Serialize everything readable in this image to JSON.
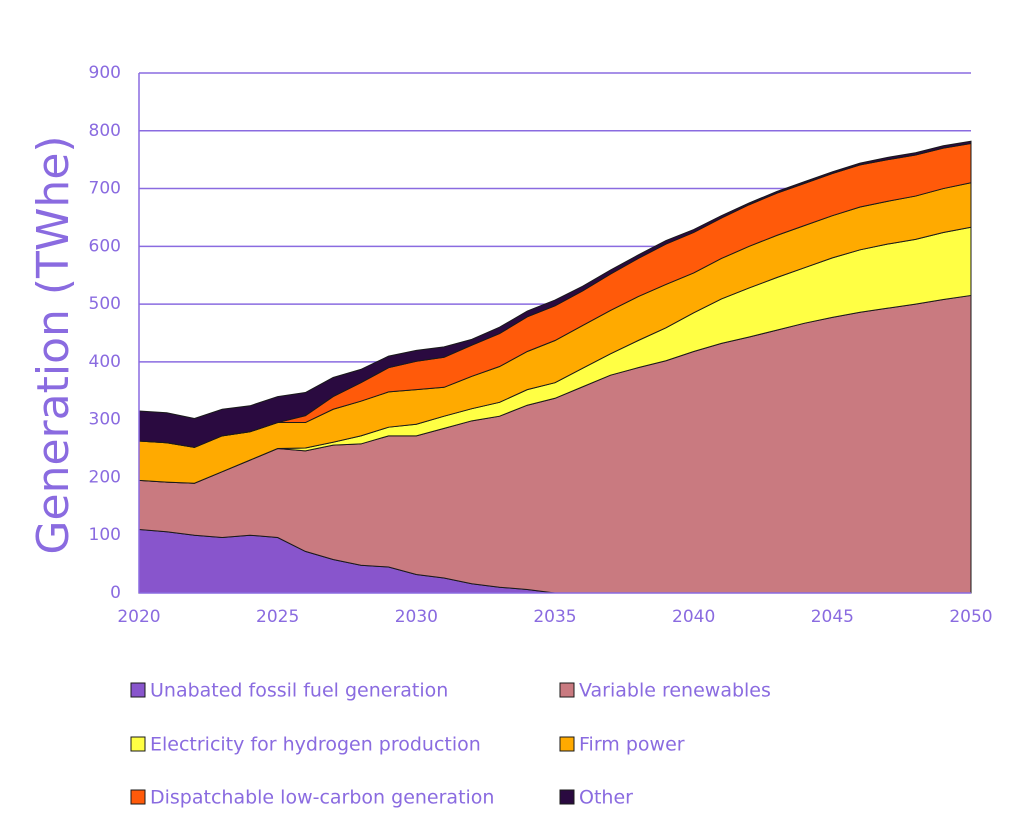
{
  "chart_data": {
    "type": "area",
    "stacked": true,
    "title": "",
    "xlabel": "",
    "ylabel": "Generation (TWhe)",
    "xlim": [
      2020,
      2050
    ],
    "ylim": [
      0,
      900
    ],
    "xticks": [
      2020,
      2025,
      2030,
      2035,
      2040,
      2045,
      2050
    ],
    "yticks": [
      0,
      100,
      200,
      300,
      400,
      500,
      600,
      700,
      800,
      900
    ],
    "grid": true,
    "legend_position": "bottom",
    "x": [
      2020,
      2021,
      2022,
      2023,
      2024,
      2025,
      2026,
      2027,
      2028,
      2029,
      2030,
      2031,
      2032,
      2033,
      2034,
      2035,
      2036,
      2037,
      2038,
      2039,
      2040,
      2041,
      2042,
      2043,
      2044,
      2045,
      2046,
      2047,
      2048,
      2049,
      2050
    ],
    "series": [
      {
        "name": "Unabated fossil fuel generation",
        "color": "#8855cc",
        "values": [
          110,
          106,
          100,
          96,
          100,
          96,
          72,
          58,
          48,
          45,
          32,
          26,
          16,
          10,
          6,
          0,
          0,
          0,
          0,
          0,
          0,
          0,
          0,
          0,
          0,
          0,
          0,
          0,
          0,
          0,
          0
        ]
      },
      {
        "name": "Variable renewables",
        "color": "#c97a80",
        "values": [
          85,
          86,
          90,
          114,
          130,
          154,
          174,
          198,
          210,
          227,
          240,
          259,
          282,
          296,
          319,
          337,
          357,
          377,
          390,
          402,
          418,
          432,
          443,
          455,
          467,
          477,
          486,
          493,
          500,
          508,
          515
        ]
      },
      {
        "name": "Electricity for hydrogen production",
        "color": "#ffff44",
        "values": [
          0,
          0,
          0,
          0,
          0,
          0,
          5,
          5,
          14,
          15,
          20,
          21,
          21,
          24,
          27,
          27,
          32,
          37,
          47,
          57,
          67,
          77,
          85,
          91,
          96,
          103,
          108,
          111,
          112,
          116,
          118
        ]
      },
      {
        "name": "Firm power",
        "color": "#ffaa00",
        "values": [
          68,
          68,
          62,
          62,
          49,
          45,
          44,
          57,
          60,
          61,
          60,
          50,
          56,
          62,
          66,
          73,
          74,
          75,
          76,
          75,
          69,
          70,
          72,
          73,
          73,
          73,
          74,
          74,
          75,
          76,
          77
        ]
      },
      {
        "name": "Dispatchable low-carbon generation",
        "color": "#ff5a0a",
        "values": [
          0,
          0,
          0,
          0,
          0,
          0,
          12,
          22,
          32,
          42,
          49,
          52,
          54,
          57,
          60,
          60,
          60,
          63,
          66,
          70,
          70,
          70,
          72,
          73,
          73,
          73,
          73,
          72,
          71,
          70,
          68
        ]
      },
      {
        "name": "Other",
        "color": "#2a0a40",
        "values": [
          52,
          52,
          50,
          46,
          45,
          45,
          40,
          33,
          23,
          20,
          19,
          18,
          10,
          11,
          10,
          10,
          8,
          7,
          6,
          6,
          5,
          4,
          3,
          3,
          3,
          3,
          3,
          4,
          4,
          4,
          4
        ]
      }
    ]
  }
}
